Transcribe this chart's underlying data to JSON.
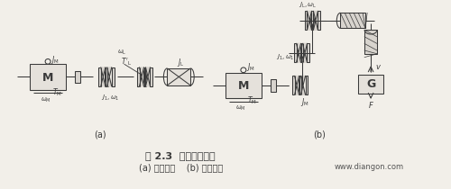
{
  "title_line1": "图 2.3  多轴拖动系统",
  "title_line2": "(a) 旋转运动    (b) 直线运动",
  "watermark": "www.diangon.com",
  "bg_color": "#f2efe9",
  "label_a": "(a)",
  "label_b": "(b)",
  "ec": "#3a3a3a",
  "lw": 0.75
}
